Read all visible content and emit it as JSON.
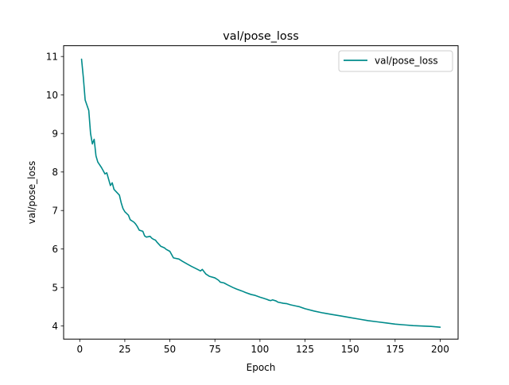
{
  "chart_data": {
    "type": "line",
    "title": "val/pose_loss",
    "xlabel": "Epoch",
    "ylabel": "val/pose_loss",
    "xlim": [
      -8.95,
      209.95
    ],
    "ylim": [
      3.66,
      11.28
    ],
    "xticks": [
      0,
      25,
      50,
      75,
      100,
      125,
      150,
      175,
      200
    ],
    "yticks": [
      4,
      5,
      6,
      7,
      8,
      9,
      10,
      11
    ],
    "grid": false,
    "legend_position": "top-right",
    "series": [
      {
        "name": "val/pose_loss",
        "color": "#008b8b",
        "x": [
          1,
          2,
          3,
          5,
          6,
          7,
          8,
          9,
          10,
          12,
          14,
          15,
          17,
          18,
          19,
          22,
          23,
          24,
          25,
          27,
          28,
          30,
          31,
          32,
          33,
          35,
          36,
          37,
          39,
          40,
          41,
          42,
          43,
          45,
          46,
          47,
          48,
          50,
          52,
          55,
          57,
          60,
          62,
          65,
          67,
          68,
          70,
          72,
          75,
          77,
          78,
          80,
          82,
          85,
          87,
          90,
          92,
          95,
          97,
          100,
          102,
          104,
          105,
          106,
          107,
          109,
          110,
          113,
          115,
          117,
          120,
          122,
          125,
          130,
          135,
          140,
          145,
          150,
          155,
          160,
          165,
          170,
          175,
          180,
          185,
          190,
          195,
          200
        ],
        "values": [
          10.93,
          10.45,
          9.87,
          9.6,
          9.0,
          8.73,
          8.85,
          8.42,
          8.26,
          8.12,
          7.95,
          7.98,
          7.65,
          7.72,
          7.55,
          7.4,
          7.2,
          7.05,
          6.97,
          6.88,
          6.76,
          6.7,
          6.65,
          6.58,
          6.49,
          6.46,
          6.34,
          6.31,
          6.33,
          6.28,
          6.25,
          6.23,
          6.17,
          6.07,
          6.05,
          6.03,
          5.99,
          5.94,
          5.77,
          5.74,
          5.68,
          5.6,
          5.55,
          5.48,
          5.43,
          5.47,
          5.35,
          5.29,
          5.25,
          5.19,
          5.14,
          5.12,
          5.07,
          5.0,
          4.96,
          4.91,
          4.87,
          4.82,
          4.8,
          4.75,
          4.72,
          4.69,
          4.67,
          4.66,
          4.68,
          4.65,
          4.62,
          4.59,
          4.58,
          4.55,
          4.52,
          4.5,
          4.45,
          4.39,
          4.34,
          4.3,
          4.26,
          4.22,
          4.18,
          4.14,
          4.11,
          4.08,
          4.05,
          4.03,
          4.01,
          4.0,
          3.99,
          3.97
        ]
      }
    ]
  }
}
